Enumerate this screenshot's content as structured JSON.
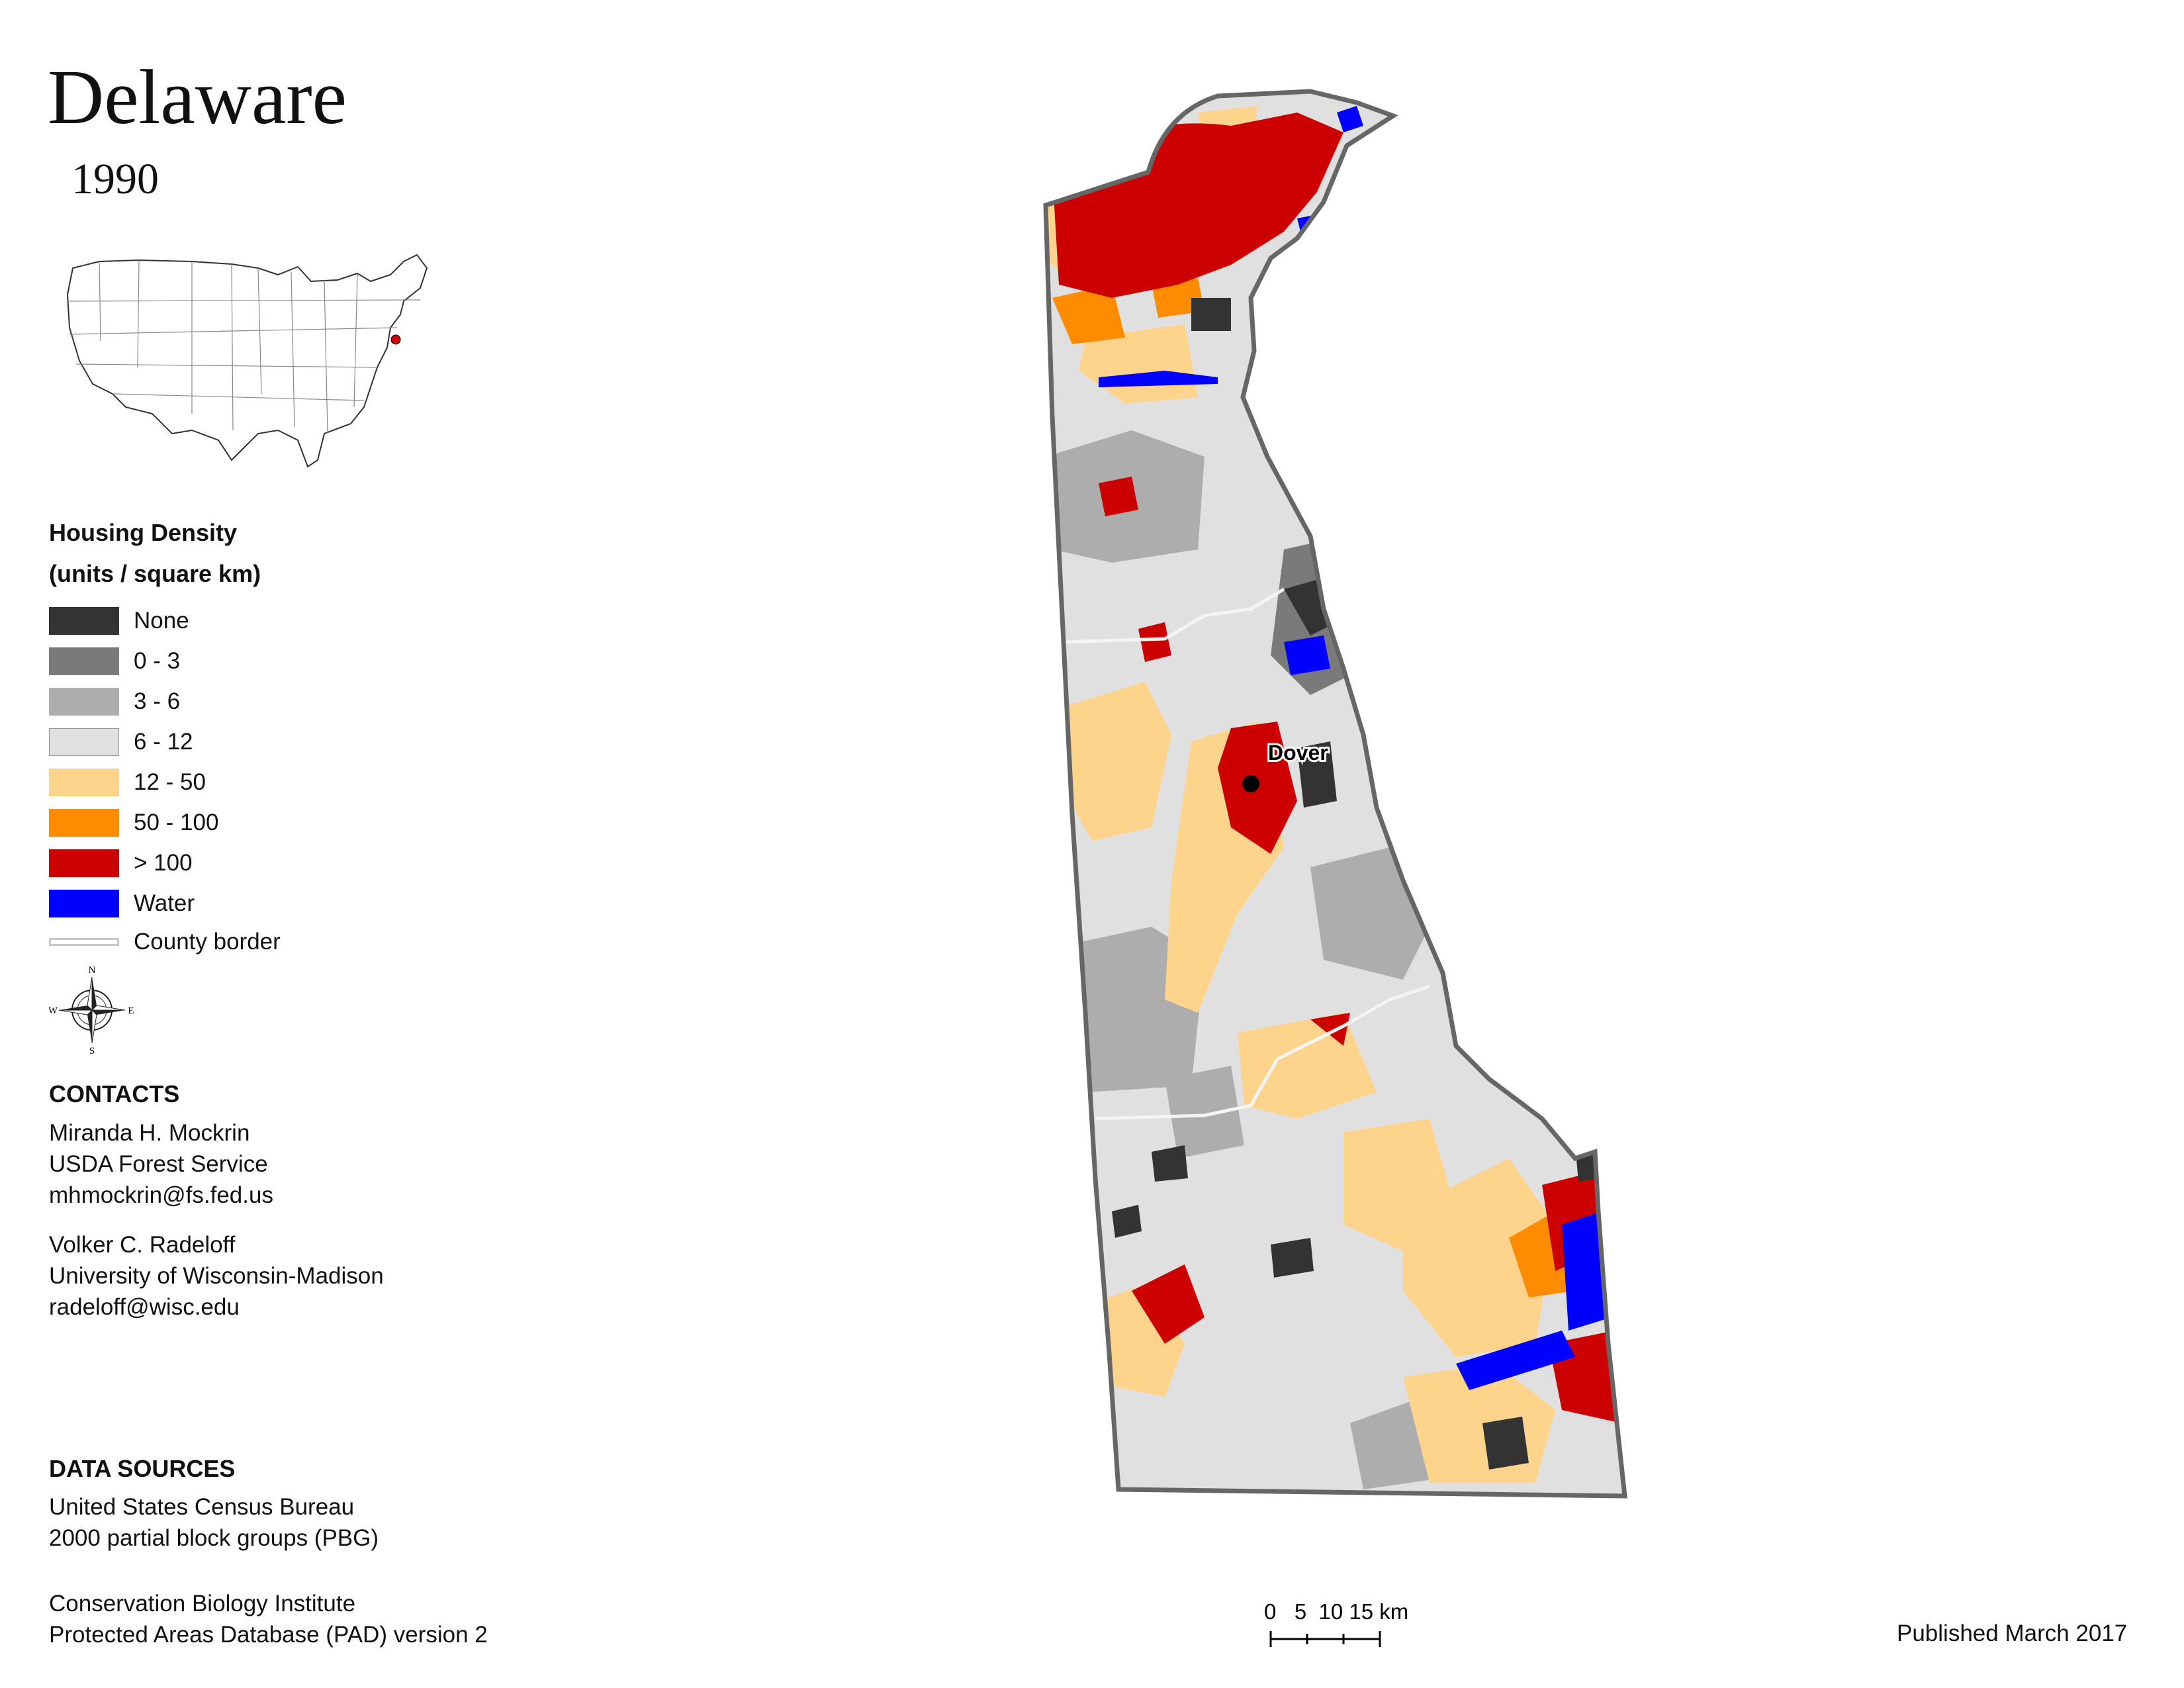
{
  "title": "Delaware",
  "year": "1990",
  "legend": {
    "title": "Housing Density",
    "units": "(units / square km)",
    "items": [
      {
        "label": "None",
        "color": "#333333"
      },
      {
        "label": "0 - 3",
        "color": "#7a7a7a"
      },
      {
        "label": "3 - 6",
        "color": "#adadad"
      },
      {
        "label": "6 - 12",
        "color": "#e0e0e0"
      },
      {
        "label": "12 - 50",
        "color": "#fed48c"
      },
      {
        "label": "50 - 100",
        "color": "#ff8c00"
      },
      {
        "label": "> 100",
        "color": "#cc0000"
      },
      {
        "label": "Water",
        "color": "#0000ff"
      }
    ],
    "county_border_label": "County border"
  },
  "compass": {
    "n": "N",
    "s": "S",
    "e": "E",
    "w": "W"
  },
  "contacts": {
    "heading": "CONTACTS",
    "people": [
      {
        "name": "Miranda H. Mockrin",
        "org": "USDA Forest Service",
        "email": "mhmockrin@fs.fed.us"
      },
      {
        "name": "Volker C. Radeloff",
        "org": "University of Wisconsin-Madison",
        "email": "radeloff@wisc.edu"
      }
    ]
  },
  "data_sources": {
    "heading": "DATA SOURCES",
    "lines": [
      "United States Census Bureau",
      "2000 partial block groups (PBG)",
      "Conservation Biology Institute",
      "Protected Areas Database (PAD) version 2"
    ]
  },
  "map": {
    "city_label": "Dover"
  },
  "scale": {
    "ticks": [
      "0",
      "5",
      "10",
      "15"
    ],
    "unit": "km",
    "text": "0   5  10 15 km"
  },
  "published": "Published March 2017"
}
